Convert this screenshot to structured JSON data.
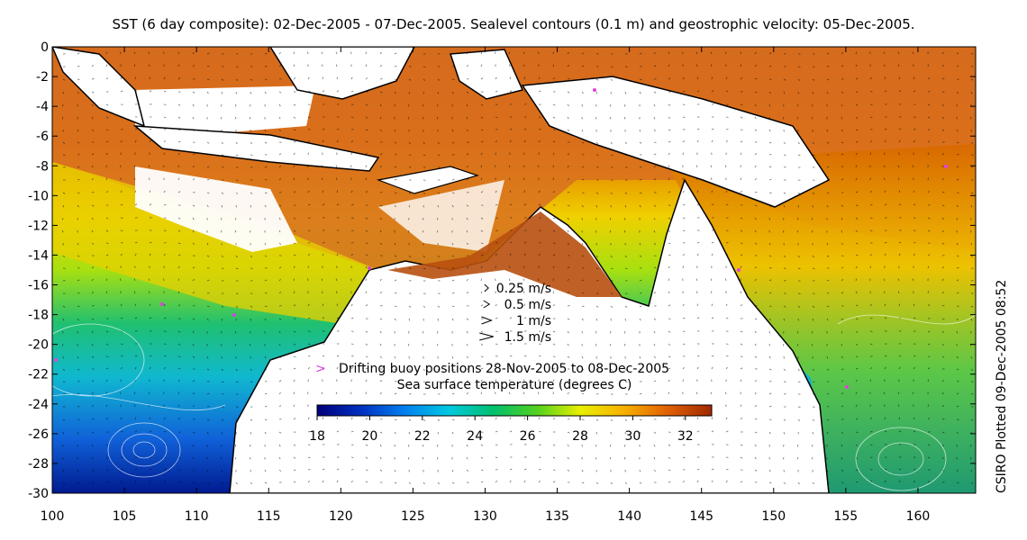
{
  "title": "SST (6 day composite): 02-Dec-2005 - 07-Dec-2005. Sealevel contours (0.1 m) and geostrophic velocity: 05-Dec-2005.",
  "side_label": "CSIRO Plotted 09-Dec-2005 08:52",
  "axes": {
    "x_ticks": [
      100,
      105,
      110,
      115,
      120,
      125,
      130,
      135,
      140,
      145,
      150,
      155,
      160
    ],
    "y_ticks": [
      0,
      -2,
      -4,
      -6,
      -8,
      -10,
      -12,
      -14,
      -16,
      -18,
      -20,
      -22,
      -24,
      -26,
      -28,
      -30
    ],
    "xlim": [
      100,
      164
    ],
    "ylim": [
      -30,
      0
    ]
  },
  "velocity_legend": [
    {
      "label": "0.25 m/s",
      "speed": 0.25
    },
    {
      "label": "0.5 m/s",
      "speed": 0.5
    },
    {
      "label": "1 m/s",
      "speed": 1
    },
    {
      "label": "1.5 m/s",
      "speed": 1.5
    }
  ],
  "buoy_legend": {
    "symbol": ">",
    "label": "Drifting buoy positions 28-Nov-2005 to 08-Dec-2005",
    "color": "#e040e0"
  },
  "colorbar": {
    "title": "Sea surface temperature (degrees C)",
    "ticks": [
      18,
      20,
      22,
      24,
      26,
      28,
      30,
      32
    ],
    "range": [
      18,
      33
    ],
    "colors": [
      "#00007a",
      "#0030c0",
      "#0080f0",
      "#00c8e0",
      "#00c070",
      "#50d020",
      "#e8f000",
      "#f8b000",
      "#e06000",
      "#a02800"
    ]
  }
}
